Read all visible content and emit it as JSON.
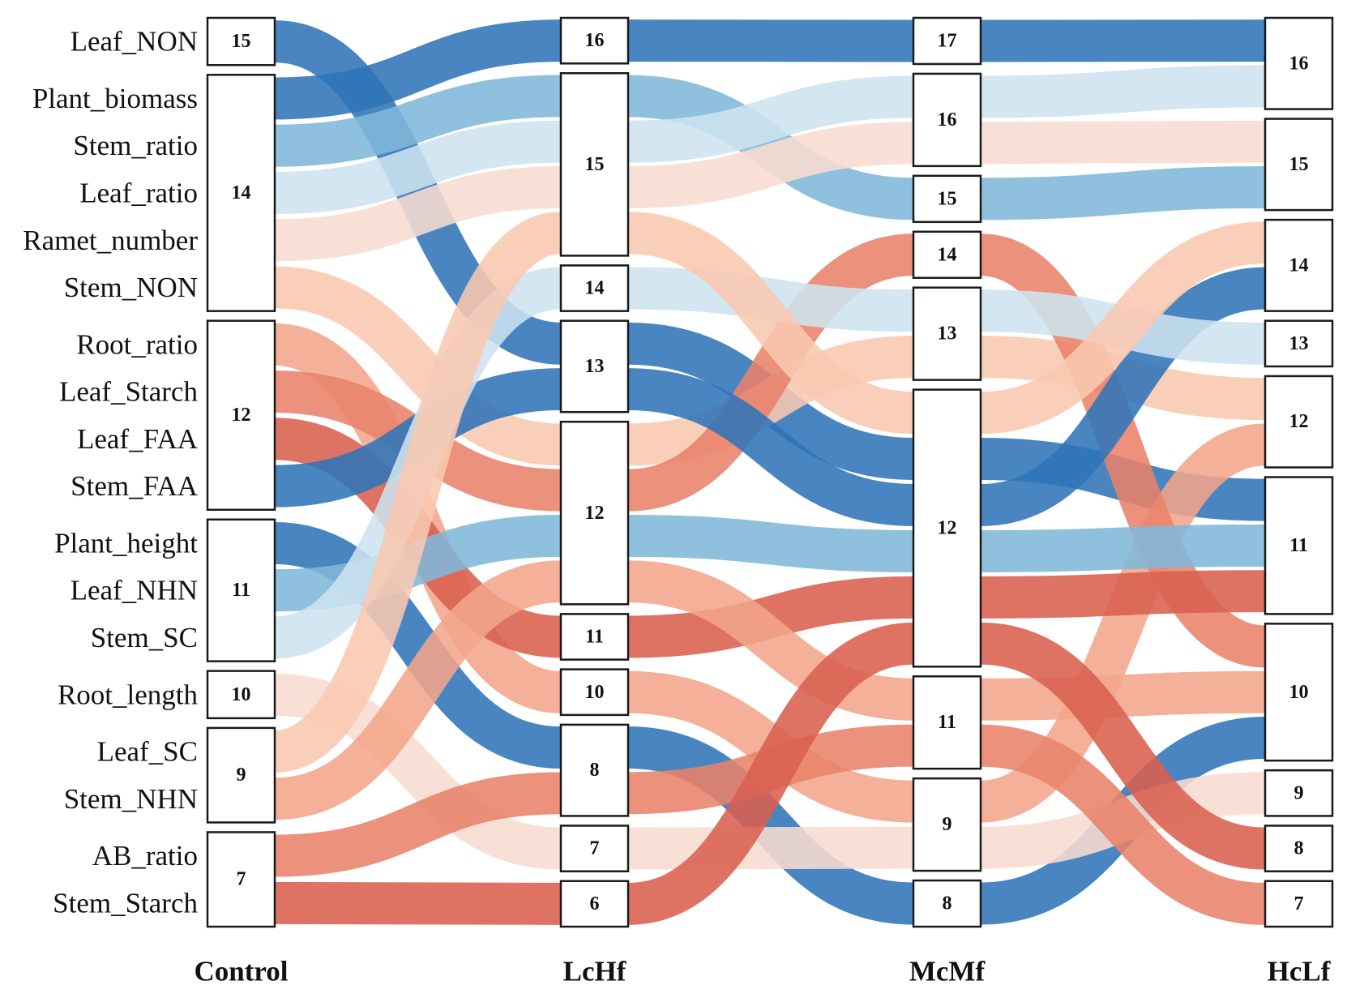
{
  "chart_data": {
    "type": "sankey",
    "stages": [
      "Control",
      "LcHf",
      "McMf",
      "HcLf"
    ],
    "nodes": {
      "Control": [
        "15",
        "14",
        "12",
        "11",
        "10",
        "9",
        "7"
      ],
      "LcHf": [
        "16",
        "15",
        "14",
        "13",
        "12",
        "11",
        "10",
        "8",
        "7",
        "6"
      ],
      "McMf": [
        "17",
        "16",
        "15",
        "14",
        "13",
        "12",
        "11",
        "9",
        "8"
      ],
      "HcLf": [
        "16",
        "15",
        "14",
        "13",
        "12",
        "11",
        "10",
        "9",
        "8",
        "7"
      ]
    },
    "traits": [
      {
        "name": "Leaf_NON",
        "color": "#2f74b8",
        "path": [
          "15",
          "13",
          "12",
          "11"
        ]
      },
      {
        "name": "Plant_biomass",
        "color": "#2f74b8",
        "path": [
          "14",
          "16",
          "17",
          "16"
        ]
      },
      {
        "name": "Stem_ratio",
        "color": "#7fb7d9",
        "path": [
          "14",
          "15",
          "15",
          "15"
        ]
      },
      {
        "name": "Leaf_ratio",
        "color": "#cde2ef",
        "path": [
          "14",
          "15",
          "16",
          "16"
        ]
      },
      {
        "name": "Ramet_number",
        "color": "#f8dcd0",
        "path": [
          "14",
          "15",
          "16",
          "15"
        ]
      },
      {
        "name": "Stem_NON",
        "color": "#f9c8b0",
        "path": [
          "14",
          "12",
          "13",
          "12"
        ]
      },
      {
        "name": "Root_ratio",
        "color": "#f2a58a",
        "path": [
          "12",
          "10",
          "9",
          "12"
        ]
      },
      {
        "name": "Leaf_Starch",
        "color": "#e8826a",
        "path": [
          "12",
          "12",
          "14",
          "10"
        ]
      },
      {
        "name": "Leaf_FAA",
        "color": "#d9604e",
        "path": [
          "12",
          "11",
          "12",
          "11"
        ]
      },
      {
        "name": "Stem_FAA",
        "color": "#2f74b8",
        "path": [
          "12",
          "13",
          "12",
          "14"
        ]
      },
      {
        "name": "Plant_height",
        "color": "#2f74b8",
        "path": [
          "11",
          "8",
          "8",
          "10"
        ]
      },
      {
        "name": "Leaf_NHN",
        "color": "#7fb7d9",
        "path": [
          "11",
          "12",
          "12",
          "11"
        ]
      },
      {
        "name": "Stem_SC",
        "color": "#cde2ef",
        "path": [
          "11",
          "14",
          "13",
          "13"
        ]
      },
      {
        "name": "Root_length",
        "color": "#f8dcd0",
        "path": [
          "10",
          "7",
          "9",
          "9"
        ]
      },
      {
        "name": "Leaf_SC",
        "color": "#f9c8b0",
        "path": [
          "9",
          "15",
          "12",
          "14"
        ]
      },
      {
        "name": "Stem_NHN",
        "color": "#f2a58a",
        "path": [
          "9",
          "12",
          "11",
          "10"
        ]
      },
      {
        "name": "AB_ratio",
        "color": "#e8826a",
        "path": [
          "7",
          "8",
          "11",
          "7"
        ]
      },
      {
        "name": "Stem_Starch",
        "color": "#d9604e",
        "path": [
          "7",
          "6",
          "12",
          "8"
        ]
      }
    ]
  }
}
